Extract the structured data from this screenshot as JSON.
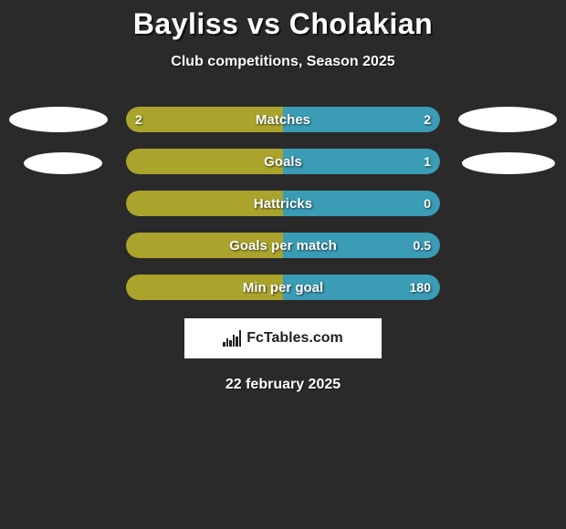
{
  "title": "Bayliss vs Cholakian",
  "subtitle": "Club competitions, Season 2025",
  "date": "22 february 2025",
  "logo_text": "FcTables.com",
  "colors": {
    "background": "#2a2a2a",
    "left_bar": "#aaa42c",
    "right_bar": "#3a9cb5",
    "oval": "#ffffff",
    "text": "#ffffff"
  },
  "stats": [
    {
      "label": "Matches",
      "left_value": "2",
      "right_value": "2",
      "left_pct": 50,
      "right_pct": 50,
      "left_color": "#aaa42c",
      "right_color": "#3a9cb5"
    },
    {
      "label": "Goals",
      "left_value": "",
      "right_value": "1",
      "left_pct": 50,
      "right_pct": 50,
      "left_color": "#aaa42c",
      "right_color": "#3a9cb5"
    },
    {
      "label": "Hattricks",
      "left_value": "",
      "right_value": "0",
      "left_pct": 50,
      "right_pct": 50,
      "left_color": "#aaa42c",
      "right_color": "#3a9cb5"
    },
    {
      "label": "Goals per match",
      "left_value": "",
      "right_value": "0.5",
      "left_pct": 50,
      "right_pct": 50,
      "left_color": "#aaa42c",
      "right_color": "#3a9cb5"
    },
    {
      "label": "Min per goal",
      "left_value": "",
      "right_value": "180",
      "left_pct": 50,
      "right_pct": 50,
      "left_color": "#aaa42c",
      "right_color": "#3a9cb5"
    }
  ],
  "side_ovals": {
    "left_count": 2,
    "right_count": 2
  }
}
